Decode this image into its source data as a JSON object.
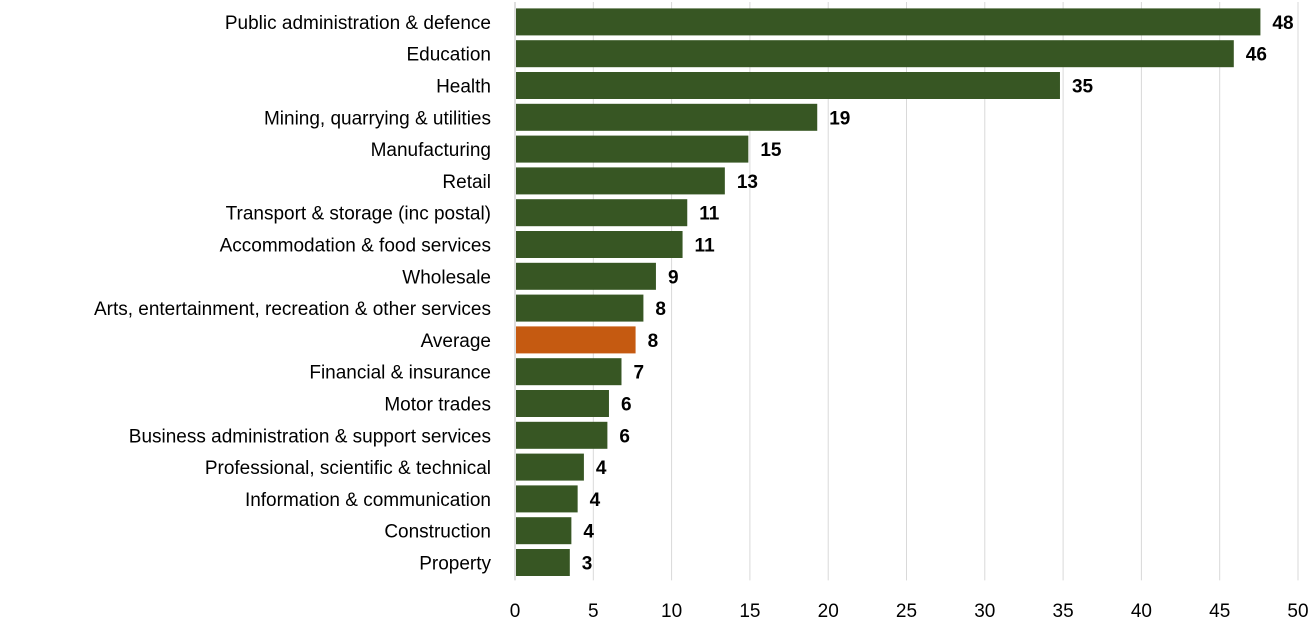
{
  "chart_data": {
    "type": "bar",
    "orientation": "horizontal",
    "title": "",
    "xlabel": "",
    "ylabel": "",
    "categories": [
      "Public administration & defence",
      "Education",
      "Health",
      "Mining, quarrying & utilities",
      "Manufacturing",
      "Retail",
      "Transport & storage (inc postal)",
      "Accommodation & food services",
      "Wholesale",
      "Arts, entertainment, recreation & other services",
      "Average",
      "Financial & insurance",
      "Motor trades",
      "Business administration & support services",
      "Professional, scientific & technical",
      "Information & communication",
      "Construction",
      "Property"
    ],
    "values": [
      47.6,
      45.9,
      34.8,
      19.3,
      14.9,
      13.4,
      11.0,
      10.7,
      9.0,
      8.2,
      7.7,
      6.8,
      6.0,
      5.9,
      4.4,
      4.0,
      3.6,
      3.5
    ],
    "data_labels": [
      "48",
      "46",
      "35",
      "19",
      "15",
      "13",
      "11",
      "11",
      "9",
      "8",
      "8",
      "7",
      "6",
      "6",
      "4",
      "4",
      "4",
      "3"
    ],
    "xlim": [
      0,
      50
    ],
    "x_ticks": [
      "0",
      "5",
      "10",
      "15",
      "20",
      "25",
      "30",
      "35",
      "40",
      "45",
      "50"
    ],
    "grid": "vertical",
    "legend": "none",
    "bar_color": "#375623",
    "highlight_category": "Average",
    "highlight_color": "#c55a11"
  }
}
